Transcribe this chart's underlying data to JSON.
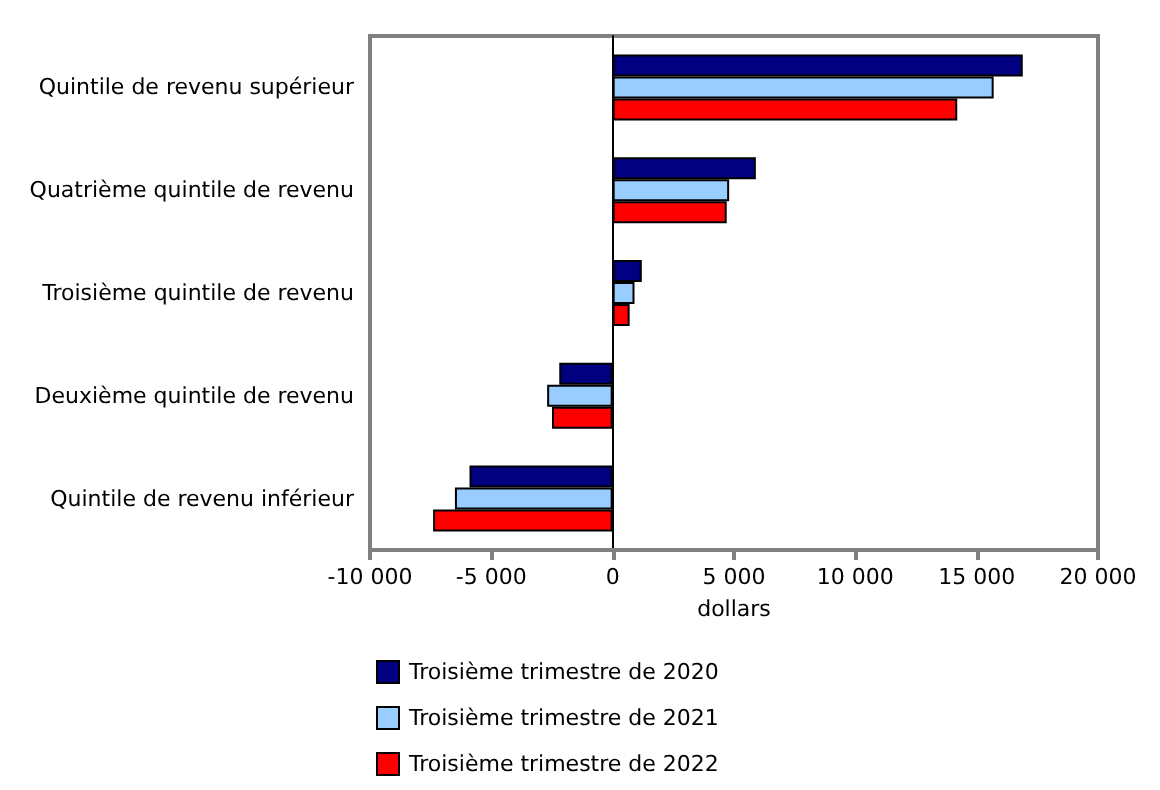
{
  "chart_data": {
    "type": "bar",
    "orientation": "horizontal",
    "xlabel": "dollars",
    "categories": [
      "Quintile de revenu supérieur",
      "Quatrième quintile de revenu",
      "Troisième quintile de revenu",
      "Deuxième quintile de revenu",
      "Quintile de revenu inférieur"
    ],
    "series": [
      {
        "name": "Troisième trimestre de 2020",
        "color": "#000080",
        "values": [
          16900,
          5900,
          1200,
          -2200,
          -5900
        ]
      },
      {
        "name": "Troisième trimestre de 2021",
        "color": "#99ccff",
        "values": [
          15700,
          4800,
          900,
          -2700,
          -6500
        ]
      },
      {
        "name": "Troisième trimestre de 2022",
        "color": "#ff0000",
        "values": [
          14200,
          4700,
          700,
          -2500,
          -7400
        ]
      }
    ],
    "xlim": [
      -10000,
      20000
    ],
    "xticks": [
      {
        "value": -10000,
        "label": "-10 000"
      },
      {
        "value": -5000,
        "label": "-5 000"
      },
      0,
      {
        "value": 5000,
        "label": "5 000"
      },
      {
        "value": 10000,
        "label": "10 000"
      },
      {
        "value": 15000,
        "label": "15 000"
      },
      {
        "value": 20000,
        "label": "20 000"
      }
    ],
    "legend": "bottom"
  }
}
